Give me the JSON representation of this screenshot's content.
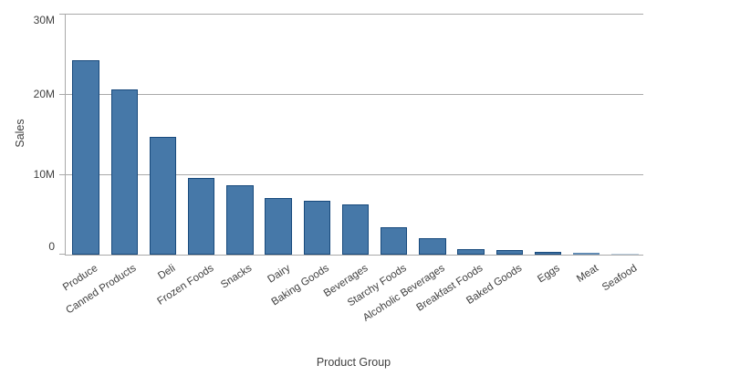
{
  "chart_data": {
    "type": "bar",
    "title": "",
    "xlabel": "Product Group",
    "ylabel": "Sales",
    "categories": [
      "Produce",
      "Canned Products",
      "Deli",
      "Frozen Foods",
      "Snacks",
      "Dairy",
      "Baking Goods",
      "Beverages",
      "Starchy Foods",
      "Alcoholic Beverages",
      "Breakfast Foods",
      "Baked Goods",
      "Eggs",
      "Meat",
      "Seafood"
    ],
    "values": [
      24200000,
      20600000,
      14700000,
      9500000,
      8650000,
      7050000,
      6700000,
      6250000,
      3400000,
      2050000,
      650000,
      550000,
      350000,
      200000,
      100000
    ],
    "ylim": [
      0,
      30000000
    ],
    "yticks": [
      {
        "value": 0,
        "label": "0"
      },
      {
        "value": 10000000,
        "label": "10M"
      },
      {
        "value": 20000000,
        "label": "20M"
      },
      {
        "value": 30000000,
        "label": "30M"
      }
    ],
    "grid": "horizontal-only",
    "legend": false
  },
  "colors": {
    "bar_fill": "#4678a8",
    "bar_border": "#17497c",
    "grid_line": "#a9a9a9",
    "axis_text": "#404040"
  }
}
